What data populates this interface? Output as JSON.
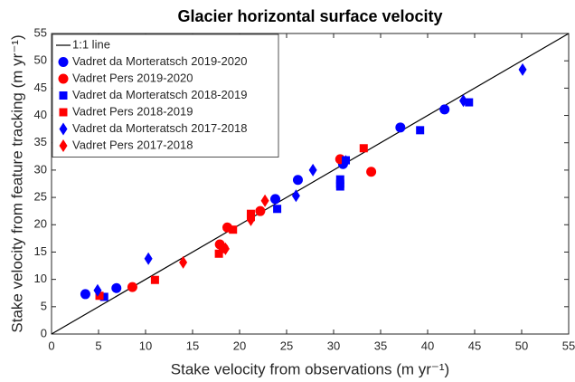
{
  "chart_data": {
    "type": "scatter",
    "title": "Glacier horizontal surface velocity",
    "x_label": "Stake velocity from observations (m yr⁻¹)",
    "y_label": "Stake velocity from feature tracking (m yr⁻¹)",
    "xlim": [
      0,
      55
    ],
    "ylim": [
      0,
      55
    ],
    "xticks": [
      0,
      5,
      10,
      15,
      20,
      25,
      30,
      35,
      40,
      45,
      50,
      55
    ],
    "yticks": [
      0,
      5,
      10,
      15,
      20,
      25,
      30,
      35,
      40,
      45,
      50,
      55
    ],
    "legend": "upper left",
    "series": [
      {
        "name": "1:1 line",
        "type": "line",
        "color": "#000000",
        "x": [
          0,
          55
        ],
        "values": [
          0,
          55
        ]
      },
      {
        "name": "Vadret da Morteratsch 2019-2020",
        "marker": "circle",
        "color": "#0000ff",
        "x": [
          3.6,
          6.9,
          23.8,
          26.2,
          31.0,
          37.1,
          41.8
        ],
        "values": [
          7.3,
          8.4,
          24.7,
          28.2,
          31.1,
          37.8,
          41.1
        ]
      },
      {
        "name": "Vadret Pers 2019-2020",
        "marker": "circle",
        "color": "#ff0000",
        "x": [
          8.6,
          17.9,
          18.3,
          18.7,
          22.2,
          30.7,
          34.0
        ],
        "values": [
          8.6,
          16.4,
          15.7,
          19.5,
          22.5,
          32.0,
          29.7
        ]
      },
      {
        "name": "Vadret da Morteratsch 2018-2019",
        "marker": "square",
        "color": "#0000ff",
        "x": [
          5.6,
          24.0,
          30.7,
          30.7,
          30.7,
          31.3,
          39.2,
          44.4
        ],
        "values": [
          6.8,
          22.9,
          28.3,
          27.5,
          27.0,
          31.8,
          37.3,
          42.4
        ]
      },
      {
        "name": "Vadret Pers 2018-2019",
        "marker": "square",
        "color": "#ff0000",
        "x": [
          5.1,
          11.0,
          17.8,
          19.3,
          21.2,
          21.2,
          33.2
        ],
        "values": [
          7.0,
          9.9,
          14.7,
          19.1,
          22.0,
          21.4,
          34.0
        ]
      },
      {
        "name": "Vadret da Morteratsch 2017-2018",
        "marker": "diamond",
        "color": "#0000ff",
        "x": [
          4.9,
          10.3,
          26.0,
          27.8,
          31.3,
          43.8,
          50.1
        ],
        "values": [
          8.0,
          13.8,
          25.3,
          30.0,
          31.6,
          42.7,
          48.4
        ]
      },
      {
        "name": "Vadret Pers 2017-2018",
        "marker": "diamond",
        "color": "#ff0000",
        "x": [
          14.0,
          18.5,
          21.2,
          22.7
        ],
        "values": [
          13.1,
          15.6,
          20.9,
          24.4
        ]
      }
    ]
  }
}
